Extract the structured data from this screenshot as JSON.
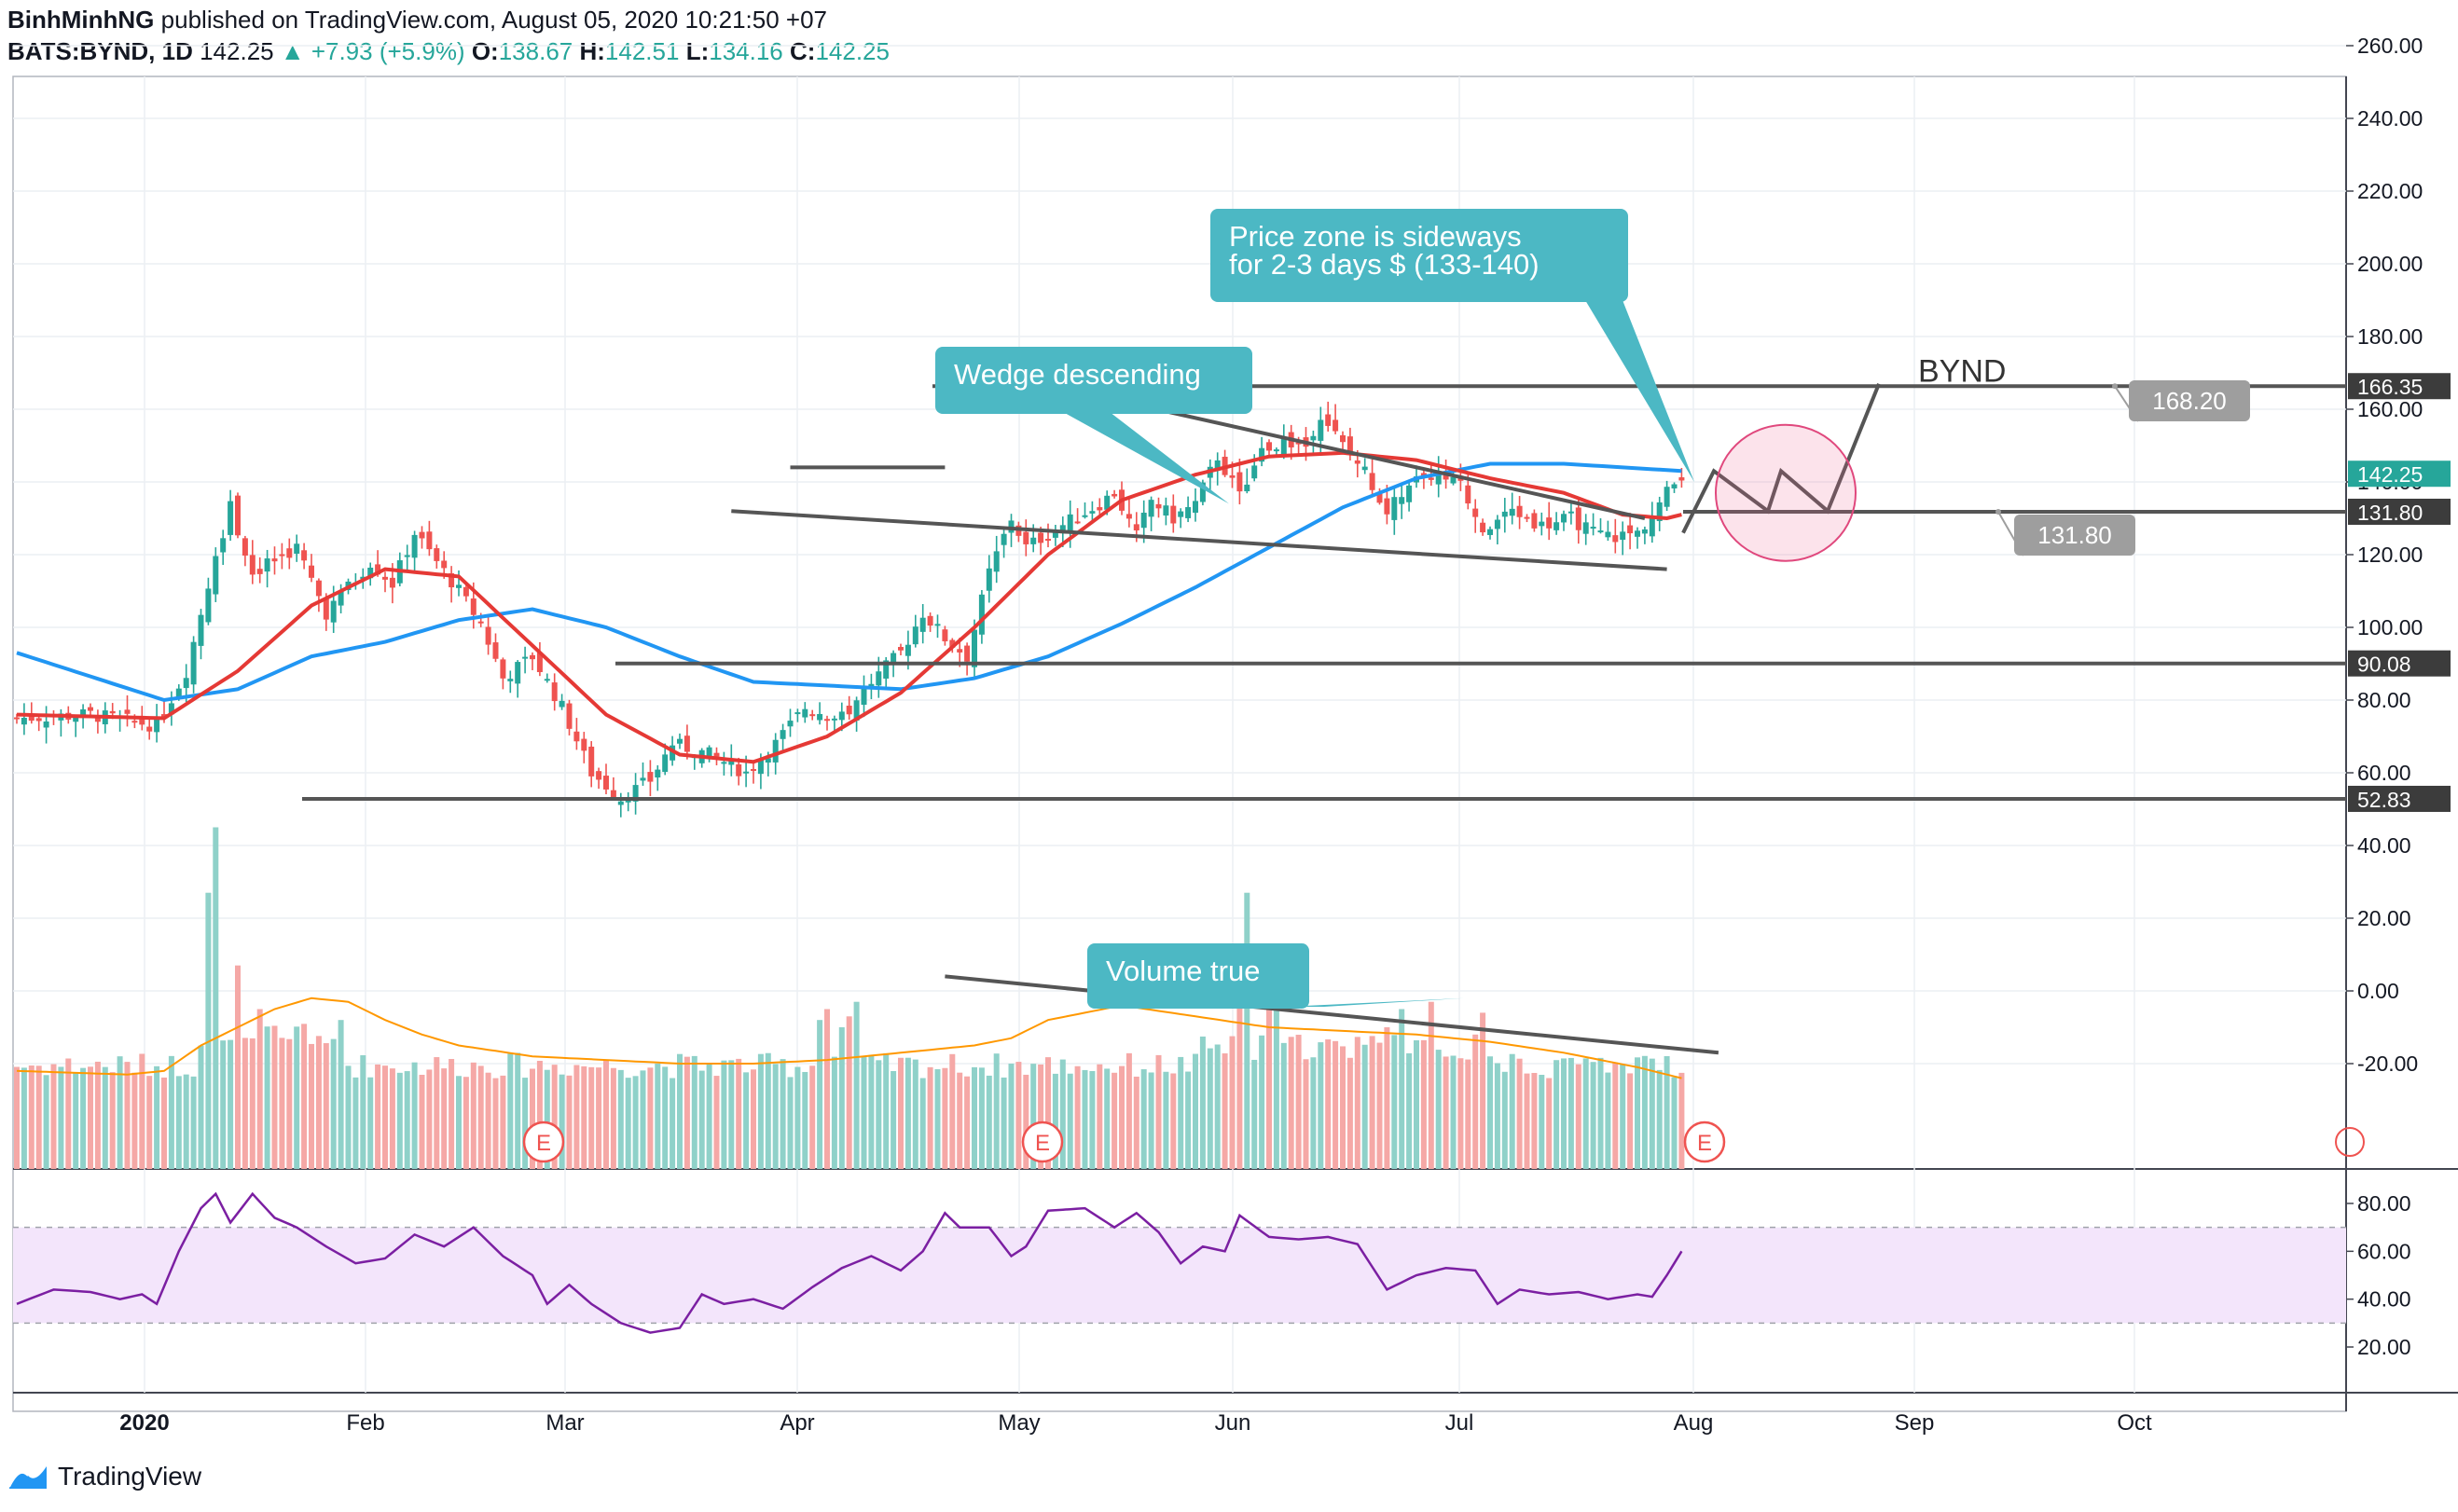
{
  "header": {
    "author": "BinhMinhNG",
    "published_text": "published on TradingView.com, August 05, 2020 10:21:50 +07",
    "symbol": "BATS:BYND, 1D",
    "last": "142.25",
    "change": "▲ +7.93 (+5.9%)",
    "open_label": "O:",
    "open": "138.67",
    "high_label": "H:",
    "high": "142.51",
    "low_label": "L:",
    "low": "134.16",
    "close_label": "C:",
    "close": "142.25"
  },
  "footer": {
    "brand": "TradingView",
    "brand_icon": "tradingview-logo-icon"
  },
  "colors": {
    "up": "#26a69a",
    "down": "#ef5350",
    "ma_fast": "#e53935",
    "ma_slow": "#2196f3",
    "line_gray": "#555555",
    "callout": "#4cb8c4",
    "rsi": "#7b1fa2",
    "rsi_band": "#f3e5fb"
  },
  "chart_data": {
    "type": "candlestick",
    "title": "",
    "x_ticks": [
      "2020",
      "Feb",
      "Mar",
      "Apr",
      "May",
      "Jun",
      "Jul",
      "Aug",
      "Sep",
      "Oct"
    ],
    "price_axis": {
      "ticks": [
        "260.00",
        "240.00",
        "220.00",
        "200.00",
        "180.00",
        "160.00",
        "140.00",
        "120.00",
        "100.00",
        "80.00",
        "60.00",
        "40.00",
        "20.00",
        "0.00",
        "-20.00"
      ],
      "ylim": [
        -25,
        265
      ]
    },
    "rsi_axis": {
      "ticks": [
        "80.00",
        "60.00",
        "40.00",
        "20.00"
      ],
      "ylim": [
        15,
        90
      ],
      "band": [
        30,
        70
      ]
    },
    "last_price_label": "142.25",
    "horizontal_levels": [
      {
        "price": 166.35,
        "label": "166.35"
      },
      {
        "price": 131.8,
        "label": "131.80"
      },
      {
        "price": 90.08,
        "label": "90.08"
      },
      {
        "price": 52.83,
        "label": "52.83"
      }
    ],
    "price_markers": [
      {
        "label": "168.20",
        "price": 168.2
      },
      {
        "label": "131.80",
        "price": 131.8
      }
    ],
    "annotations": {
      "wedge": "Wedge descending",
      "sideways_line1": "Price zone is sideways",
      "sideways_line2": "for 2-3 days $ (133-140)",
      "volume": "Volume true",
      "ticker": "BYND",
      "earnings": [
        "E",
        "E",
        "E"
      ]
    },
    "close_anchors": [
      [
        0,
        75
      ],
      [
        10,
        76
      ],
      [
        19,
        73
      ],
      [
        23,
        88
      ],
      [
        27,
        120
      ],
      [
        29,
        133
      ],
      [
        32,
        115
      ],
      [
        38,
        122
      ],
      [
        42,
        104
      ],
      [
        48,
        118
      ],
      [
        51,
        112
      ],
      [
        54,
        126
      ],
      [
        60,
        110
      ],
      [
        63,
        101
      ],
      [
        66,
        86
      ],
      [
        70,
        92
      ],
      [
        74,
        78
      ],
      [
        78,
        60
      ],
      [
        82,
        53
      ],
      [
        86,
        58
      ],
      [
        89,
        68
      ],
      [
        94,
        65
      ],
      [
        99,
        60
      ],
      [
        103,
        68
      ],
      [
        107,
        78
      ],
      [
        112,
        75
      ],
      [
        116,
        85
      ],
      [
        120,
        93
      ],
      [
        123,
        104
      ],
      [
        126,
        97
      ],
      [
        129,
        92
      ],
      [
        132,
        115
      ],
      [
        135,
        130
      ],
      [
        137,
        122
      ],
      [
        141,
        127
      ],
      [
        147,
        134
      ],
      [
        149,
        137
      ],
      [
        152,
        125
      ],
      [
        154,
        135
      ],
      [
        157,
        130
      ],
      [
        160,
        134
      ],
      [
        163,
        147
      ],
      [
        166,
        136
      ],
      [
        169,
        149
      ],
      [
        172,
        151
      ],
      [
        175,
        150
      ],
      [
        177,
        159
      ],
      [
        180,
        150
      ],
      [
        183,
        143
      ],
      [
        186,
        132
      ],
      [
        190,
        140
      ],
      [
        192,
        142
      ],
      [
        196,
        139
      ],
      [
        199,
        127
      ],
      [
        203,
        132
      ],
      [
        207,
        128
      ],
      [
        211,
        130
      ],
      [
        214,
        126
      ],
      [
        217,
        125
      ],
      [
        220,
        126
      ],
      [
        222,
        131
      ],
      [
        224,
        137
      ],
      [
        226,
        142.25
      ]
    ],
    "ma_fast": [
      [
        0,
        76
      ],
      [
        20,
        75
      ],
      [
        30,
        88
      ],
      [
        40,
        106
      ],
      [
        50,
        116
      ],
      [
        60,
        114
      ],
      [
        70,
        95
      ],
      [
        80,
        76
      ],
      [
        90,
        65
      ],
      [
        100,
        63
      ],
      [
        110,
        70
      ],
      [
        120,
        82
      ],
      [
        130,
        100
      ],
      [
        140,
        120
      ],
      [
        150,
        135
      ],
      [
        160,
        142
      ],
      [
        170,
        147
      ],
      [
        180,
        148
      ],
      [
        190,
        146
      ],
      [
        200,
        141
      ],
      [
        210,
        137
      ],
      [
        218,
        131
      ],
      [
        224,
        130
      ],
      [
        226,
        131
      ]
    ],
    "ma_slow": [
      [
        0,
        93
      ],
      [
        20,
        80
      ],
      [
        30,
        83
      ],
      [
        40,
        92
      ],
      [
        50,
        96
      ],
      [
        60,
        102
      ],
      [
        70,
        105
      ],
      [
        80,
        100
      ],
      [
        90,
        92
      ],
      [
        100,
        85
      ],
      [
        110,
        84
      ],
      [
        120,
        83
      ],
      [
        130,
        86
      ],
      [
        140,
        92
      ],
      [
        150,
        101
      ],
      [
        160,
        111
      ],
      [
        170,
        122
      ],
      [
        180,
        133
      ],
      [
        190,
        141
      ],
      [
        200,
        145
      ],
      [
        210,
        145
      ],
      [
        218,
        144
      ],
      [
        226,
        143
      ]
    ],
    "rsi": [
      [
        0,
        38
      ],
      [
        5,
        44
      ],
      [
        10,
        43
      ],
      [
        14,
        40
      ],
      [
        17,
        42
      ],
      [
        19,
        38
      ],
      [
        22,
        60
      ],
      [
        25,
        78
      ],
      [
        27,
        84
      ],
      [
        29,
        72
      ],
      [
        32,
        84
      ],
      [
        35,
        74
      ],
      [
        38,
        70
      ],
      [
        42,
        62
      ],
      [
        46,
        55
      ],
      [
        50,
        57
      ],
      [
        54,
        67
      ],
      [
        58,
        62
      ],
      [
        62,
        70
      ],
      [
        66,
        58
      ],
      [
        70,
        50
      ],
      [
        72,
        38
      ],
      [
        75,
        46
      ],
      [
        78,
        38
      ],
      [
        82,
        30
      ],
      [
        86,
        26
      ],
      [
        90,
        28
      ],
      [
        93,
        42
      ],
      [
        96,
        38
      ],
      [
        100,
        40
      ],
      [
        104,
        36
      ],
      [
        108,
        45
      ],
      [
        112,
        53
      ],
      [
        116,
        58
      ],
      [
        120,
        52
      ],
      [
        123,
        60
      ],
      [
        126,
        76
      ],
      [
        128,
        70
      ],
      [
        132,
        70
      ],
      [
        135,
        58
      ],
      [
        137,
        62
      ],
      [
        140,
        77
      ],
      [
        145,
        78
      ],
      [
        149,
        70
      ],
      [
        152,
        76
      ],
      [
        155,
        68
      ],
      [
        158,
        55
      ],
      [
        161,
        62
      ],
      [
        164,
        60
      ],
      [
        166,
        75
      ],
      [
        170,
        66
      ],
      [
        174,
        65
      ],
      [
        178,
        66
      ],
      [
        182,
        63
      ],
      [
        186,
        44
      ],
      [
        190,
        50
      ],
      [
        194,
        53
      ],
      [
        198,
        52
      ],
      [
        201,
        38
      ],
      [
        204,
        44
      ],
      [
        208,
        42
      ],
      [
        212,
        43
      ],
      [
        216,
        40
      ],
      [
        220,
        42
      ],
      [
        222,
        41
      ],
      [
        224,
        50
      ],
      [
        226,
        60
      ]
    ],
    "vol_ma": [
      [
        0,
        -22
      ],
      [
        15,
        -23
      ],
      [
        20,
        -22
      ],
      [
        25,
        -15
      ],
      [
        30,
        -10
      ],
      [
        35,
        -5
      ],
      [
        40,
        -2
      ],
      [
        45,
        -3
      ],
      [
        50,
        -8
      ],
      [
        55,
        -12
      ],
      [
        60,
        -15
      ],
      [
        70,
        -18
      ],
      [
        80,
        -19
      ],
      [
        90,
        -20
      ],
      [
        100,
        -20
      ],
      [
        110,
        -19
      ],
      [
        120,
        -17
      ],
      [
        130,
        -15
      ],
      [
        135,
        -13
      ],
      [
        140,
        -8
      ],
      [
        150,
        -4
      ],
      [
        160,
        -7
      ],
      [
        170,
        -10
      ],
      [
        180,
        -11
      ],
      [
        190,
        -12
      ],
      [
        200,
        -14
      ],
      [
        210,
        -17
      ],
      [
        220,
        -21
      ],
      [
        226,
        -24
      ]
    ],
    "vol_spikes": [
      [
        27,
        45
      ],
      [
        26,
        27
      ],
      [
        30,
        7
      ],
      [
        44,
        -8
      ],
      [
        33,
        -5
      ],
      [
        109,
        -8
      ],
      [
        110,
        -5
      ],
      [
        112,
        -10
      ],
      [
        113,
        -7
      ],
      [
        114,
        -3
      ],
      [
        166,
        5
      ],
      [
        167,
        27
      ],
      [
        170,
        -2
      ],
      [
        171,
        2
      ],
      [
        186,
        -10
      ],
      [
        188,
        -5
      ],
      [
        192,
        -3
      ],
      [
        198,
        -12
      ],
      [
        199,
        -6
      ]
    ]
  },
  "legend": {
    "ticks_right": [
      "260.00",
      "240.00",
      "220.00",
      "200.00",
      "180.00",
      "160.00",
      "140.00",
      "120.00",
      "100.00",
      "80.00",
      "60.00",
      "40.00",
      "20.00",
      "0.00",
      "-20.00"
    ]
  }
}
